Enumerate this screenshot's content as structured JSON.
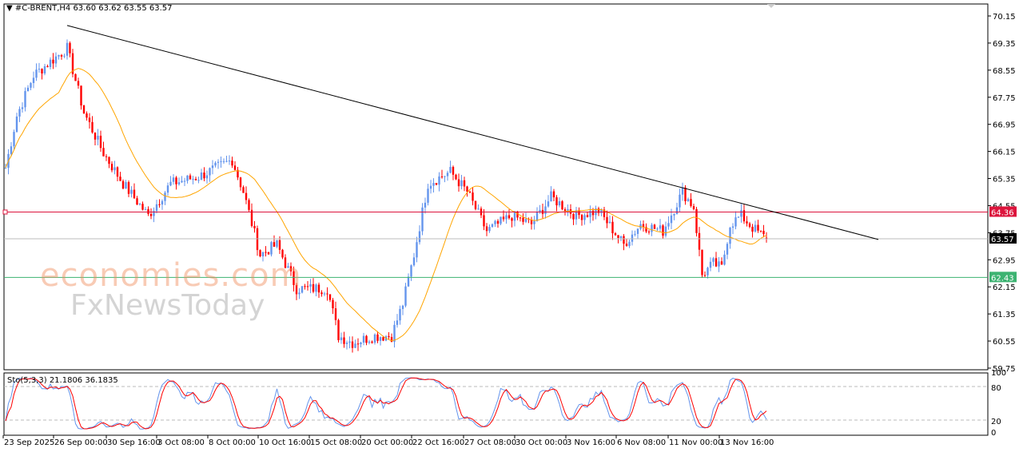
{
  "header": {
    "symbol_line": "#C-BRENT,H4  63.60 63.62 63.55 63.57"
  },
  "watermark": {
    "line1": "economies.com",
    "line2": "FxNewsToday"
  },
  "colors": {
    "up": "#6495ED",
    "down": "#FF0000",
    "ma": "#FFA500",
    "resistance": "#DC143C",
    "support": "#3CB371",
    "bid": "#000000"
  },
  "chart_data": {
    "type": "candlestick",
    "symbol": "#C-BRENT",
    "timeframe": "H4",
    "ohlc_last": {
      "open": 63.6,
      "high": 63.62,
      "low": 63.55,
      "close": 63.57
    },
    "ylim": [
      59.75,
      70.35
    ],
    "y_ticks": [
      "70.15",
      "69.35",
      "68.55",
      "67.75",
      "66.95",
      "66.15",
      "65.35",
      "64.55",
      "63.75",
      "62.95",
      "62.15",
      "61.35",
      "60.55",
      "59.75"
    ],
    "x_ticks": [
      "23 Sep 2025",
      "26 Sep 00:00",
      "30 Sep 16:00",
      "3 Oct 08:00",
      "8 Oct 00:00",
      "10 Oct 16:00",
      "15 Oct 08:00",
      "20 Oct 00:00",
      "22 Oct 16:00",
      "27 Oct 08:00",
      "30 Oct 00:00",
      "3 Nov 16:00",
      "6 Nov 08:00",
      "11 Nov 00:00",
      "13 Nov 16:00"
    ],
    "price_path_anchors": [
      [
        0,
        65.67
      ],
      [
        4,
        67.2
      ],
      [
        10,
        68.4
      ],
      [
        22,
        69.2
      ],
      [
        28,
        67.3
      ],
      [
        35,
        66.1
      ],
      [
        42,
        65.2
      ],
      [
        51,
        64.25
      ],
      [
        59,
        65.2
      ],
      [
        69,
        65.4
      ],
      [
        81,
        65.9
      ],
      [
        85,
        64.96
      ],
      [
        91,
        63.1
      ],
      [
        97,
        63.4
      ],
      [
        104,
        62.1
      ],
      [
        115,
        62.1
      ],
      [
        119,
        60.7
      ],
      [
        124,
        60.5
      ],
      [
        132,
        60.7
      ],
      [
        138,
        60.7
      ],
      [
        142,
        61.65
      ],
      [
        146,
        63.1
      ],
      [
        151,
        65.2
      ],
      [
        159,
        65.55
      ],
      [
        165,
        64.96
      ],
      [
        172,
        63.8
      ],
      [
        181,
        64.25
      ],
      [
        188,
        64.0
      ],
      [
        195,
        64.8
      ],
      [
        204,
        64.25
      ],
      [
        212,
        64.4
      ],
      [
        221,
        63.4
      ],
      [
        227,
        64.0
      ],
      [
        235,
        63.8
      ],
      [
        242,
        64.96
      ],
      [
        246,
        64.5
      ],
      [
        249,
        62.5
      ],
      [
        253,
        62.84
      ],
      [
        256,
        62.7
      ],
      [
        259,
        64.0
      ],
      [
        263,
        64.25
      ],
      [
        267,
        63.9
      ],
      [
        272,
        63.57
      ]
    ],
    "moving_average": {
      "type": "SMA",
      "period": 20
    },
    "horizontal_levels": [
      {
        "name": "resistance",
        "value": 64.36,
        "label": "64.36"
      },
      {
        "name": "current",
        "value": 63.57,
        "label": "63.57"
      },
      {
        "name": "support",
        "value": 62.43,
        "label": "62.43"
      }
    ],
    "trendline": {
      "start": {
        "index": 22,
        "price": 69.87
      },
      "end": {
        "index": 312,
        "price": 63.55
      }
    },
    "stochastic": {
      "label": "Sto(5,3,3) 21.1806 36.1835",
      "k": 21.1806,
      "d": 36.1835,
      "levels": [
        "100",
        "80",
        "20",
        "0"
      ]
    }
  }
}
